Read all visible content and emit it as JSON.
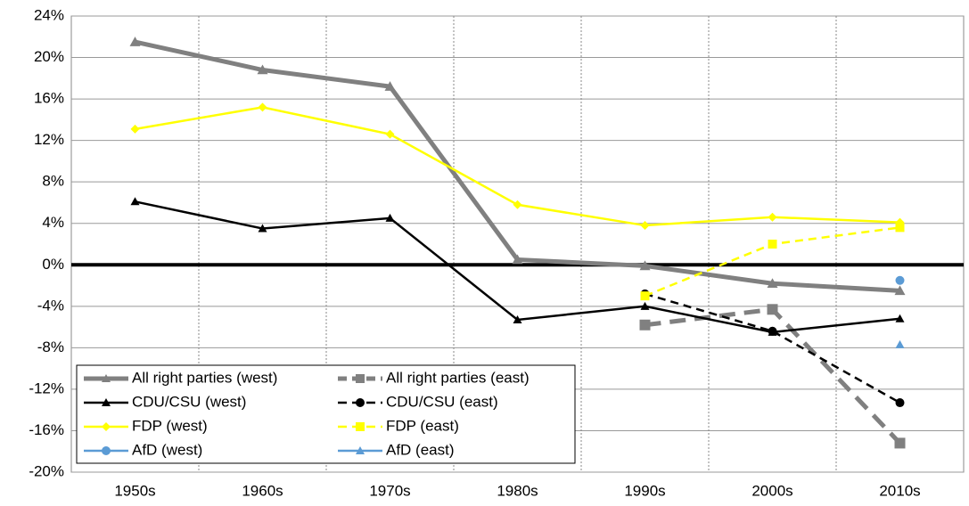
{
  "chart_data": {
    "type": "line",
    "categories": [
      "1950s",
      "1960s",
      "1970s",
      "1980s",
      "1990s",
      "2000s",
      "2010s"
    ],
    "ylim": [
      -20,
      24
    ],
    "yticks": [
      {
        "value": -20,
        "label": "-20%"
      },
      {
        "value": -16,
        "label": "-16%"
      },
      {
        "value": -12,
        "label": "-12%"
      },
      {
        "value": -8,
        "label": "-8%"
      },
      {
        "value": -4,
        "label": "-4%"
      },
      {
        "value": 0,
        "label": "0%"
      },
      {
        "value": 4,
        "label": "4%"
      },
      {
        "value": 8,
        "label": "8%"
      },
      {
        "value": 12,
        "label": "12%"
      },
      {
        "value": 16,
        "label": "16%"
      },
      {
        "value": 20,
        "label": "20%"
      },
      {
        "value": 24,
        "label": "24%"
      }
    ],
    "grid": true,
    "legend": "lower left",
    "series": [
      {
        "name": "All right parties (west)",
        "color": "#808080",
        "marker": "triangle",
        "dashed": false,
        "width": 5,
        "values": [
          21.5,
          18.8,
          17.2,
          0.5,
          -0.1,
          -1.8,
          -2.5
        ]
      },
      {
        "name": "All right parties (east)",
        "color": "#808080",
        "marker": "square",
        "dashed": true,
        "width": 5,
        "values": [
          null,
          null,
          null,
          null,
          -5.8,
          -4.3,
          -17.2
        ]
      },
      {
        "name": "CDU/CSU (west)",
        "color": "#000000",
        "marker": "triangle",
        "dashed": false,
        "width": 2.5,
        "values": [
          6.1,
          3.5,
          4.5,
          -5.3,
          -4.0,
          -6.5,
          -5.2
        ]
      },
      {
        "name": "CDU/CSU (east)",
        "color": "#000000",
        "marker": "circle",
        "dashed": true,
        "width": 2.5,
        "values": [
          null,
          null,
          null,
          null,
          -2.8,
          -6.4,
          -13.3
        ]
      },
      {
        "name": "FDP (west)",
        "color": "#ffff00",
        "marker": "diamond",
        "dashed": false,
        "width": 2.5,
        "values": [
          13.1,
          15.2,
          12.6,
          5.8,
          3.8,
          4.6,
          4.1
        ]
      },
      {
        "name": "FDP (east)",
        "color": "#ffff00",
        "marker": "square",
        "dashed": true,
        "width": 2.5,
        "values": [
          null,
          null,
          null,
          null,
          -3.0,
          2.0,
          3.6
        ]
      },
      {
        "name": "AfD (west)",
        "color": "#5b9bd5",
        "marker": "circle",
        "dashed": false,
        "width": 2.5,
        "values": [
          null,
          null,
          null,
          null,
          null,
          null,
          -1.5
        ]
      },
      {
        "name": "AfD (east)",
        "color": "#5b9bd5",
        "marker": "triangle",
        "dashed": false,
        "width": 2.5,
        "values": [
          null,
          null,
          null,
          null,
          null,
          null,
          -7.7
        ]
      }
    ]
  }
}
